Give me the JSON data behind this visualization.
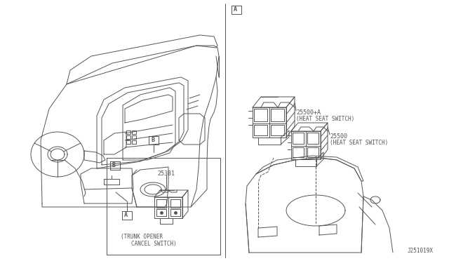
{
  "background_color": "#ffffff",
  "line_color": "#555555",
  "text_color": "#555555",
  "label_A_left": "A",
  "label_B_left": "B",
  "label_A_right": "A",
  "part_25381_label": "25381",
  "part_25381_desc1": "(TRUNK OPENER",
  "part_25381_desc2": "CANCEL SWITCH)",
  "part_25500plus_label": "25500+A",
  "part_25500plus_desc": "(HEAT SEAT SWITCH)",
  "part_25500_label": "25500",
  "part_25500_desc": "(HEAT SEAT SWITCH)",
  "diagram_id": "J251019X",
  "fig_width": 6.4,
  "fig_height": 3.72,
  "dpi": 100
}
